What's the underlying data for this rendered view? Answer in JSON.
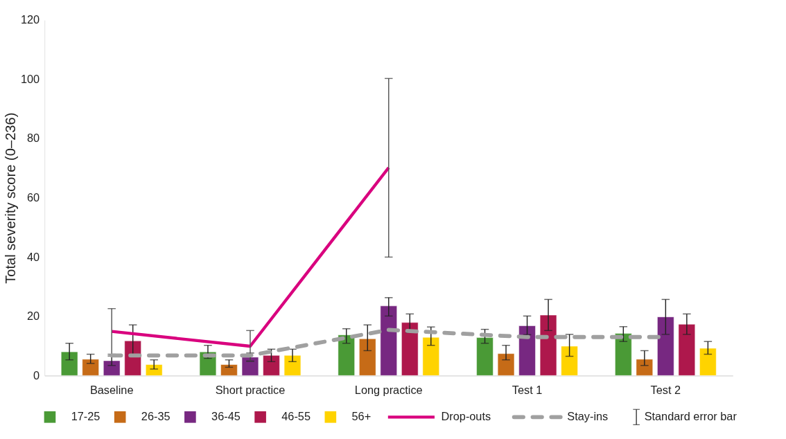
{
  "chart_data": {
    "type": "bar",
    "ylabel": "Total severity score (0–236)",
    "categories": [
      "Baseline",
      "Short practice",
      "Long practice",
      "Test 1",
      "Test 2"
    ],
    "ylim": [
      0,
      120
    ],
    "yticks": [
      0,
      20,
      40,
      60,
      80,
      100,
      120
    ],
    "grid": false,
    "legend": "bottom",
    "series": [
      {
        "name": "17-25",
        "color": "#4a9a36",
        "values": [
          8.0,
          8.0,
          13.7,
          12.8,
          14.2
        ],
        "errors": [
          [
            5.3,
            10.9
          ],
          [
            5.8,
            10.2
          ],
          [
            10.9,
            15.8
          ],
          [
            10.9,
            15.6
          ],
          [
            11.5,
            16.5
          ]
        ]
      },
      {
        "name": "26-35",
        "color": "#c66b17",
        "values": [
          5.5,
          3.7,
          12.4,
          7.4,
          5.5
        ],
        "errors": [
          [
            4.1,
            7.2
          ],
          [
            2.8,
            5.3
          ],
          [
            8.4,
            17.1
          ],
          [
            5.3,
            10.2
          ],
          [
            3.4,
            8.4
          ]
        ]
      },
      {
        "name": "36-45",
        "color": "#772881",
        "values": [
          5.0,
          6.2,
          23.5,
          16.8,
          19.8
        ],
        "errors": [
          [
            3.4,
            6.6
          ],
          [
            4.9,
            7.6
          ],
          [
            20.1,
            26.3
          ],
          [
            13.8,
            20.1
          ],
          [
            13.9,
            25.7
          ]
        ]
      },
      {
        "name": "46-55",
        "color": "#ae184c",
        "values": [
          11.7,
          6.8,
          17.9,
          20.4,
          17.3
        ],
        "errors": [
          [
            7.1,
            17.1
          ],
          [
            4.7,
            8.9
          ],
          [
            14.5,
            20.8
          ],
          [
            15.2,
            25.7
          ],
          [
            13.9,
            20.8
          ]
        ]
      },
      {
        "name": "56+",
        "color": "#ffd300",
        "values": [
          3.7,
          6.8,
          12.9,
          9.9,
          9.2
        ],
        "errors": [
          [
            2.2,
            5.3
          ],
          [
            4.7,
            8.9
          ],
          [
            10.2,
            16.4
          ],
          [
            6.5,
            13.9
          ],
          [
            7.2,
            11.5
          ]
        ]
      },
      {
        "name": "Drop-outs",
        "type": "line",
        "line_style": "solid",
        "color": "#d9007e",
        "values": [
          14.9,
          9.9,
          70.2,
          null,
          null
        ],
        "errors": [
          [
            7.2,
            22.6
          ],
          [
            4.8,
            15.2
          ],
          [
            40.0,
            100.3
          ],
          null,
          null
        ]
      },
      {
        "name": "Stay-ins",
        "type": "line",
        "line_style": "dashed",
        "color": "#a0a0a0",
        "values": [
          6.8,
          6.8,
          15.4,
          13.0,
          13.0
        ]
      }
    ],
    "annotations": [
      "Standard error bar"
    ]
  }
}
